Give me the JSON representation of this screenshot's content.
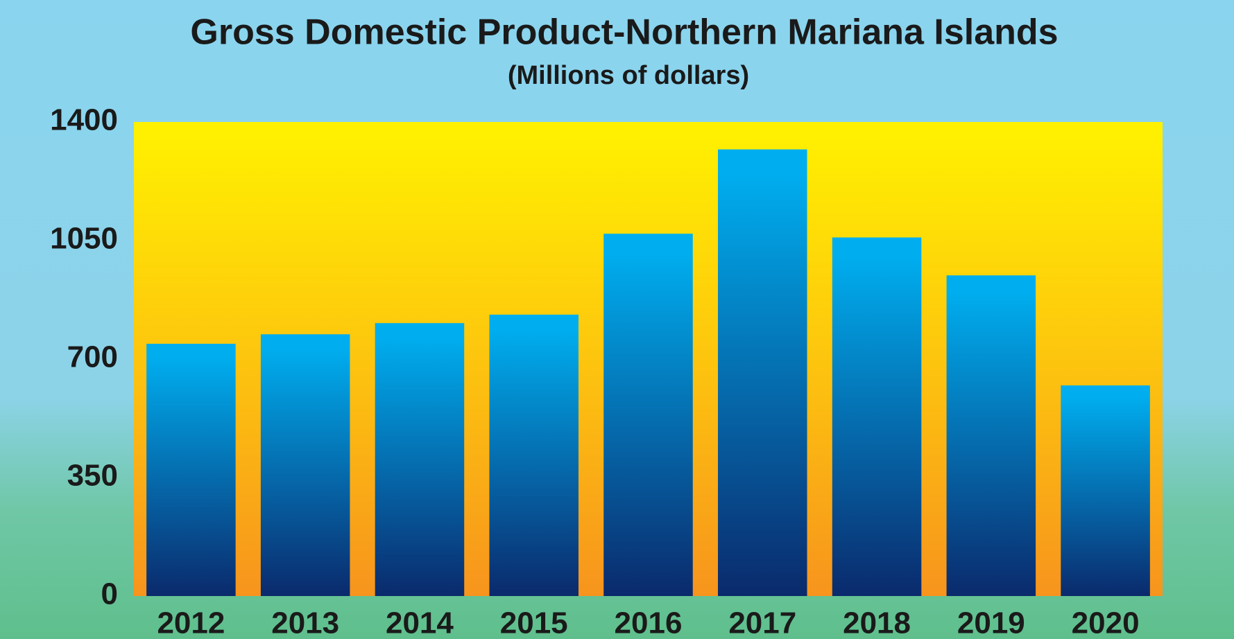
{
  "chart_data": {
    "type": "bar",
    "title": "Gross Domestic Product-Northern Mariana Islands",
    "subtitle": "(Millions of dollars)",
    "categories": [
      "2012",
      "2013",
      "2014",
      "2015",
      "2016",
      "2017",
      "2018",
      "2019",
      "2020"
    ],
    "values": [
      745,
      773,
      806,
      831,
      1070,
      1319,
      1059,
      947,
      622
    ],
    "color": "#00aeef",
    "ylim": [
      0,
      1400
    ],
    "yticks": [
      0,
      350,
      700,
      1050,
      1400
    ],
    "grid": false
  }
}
